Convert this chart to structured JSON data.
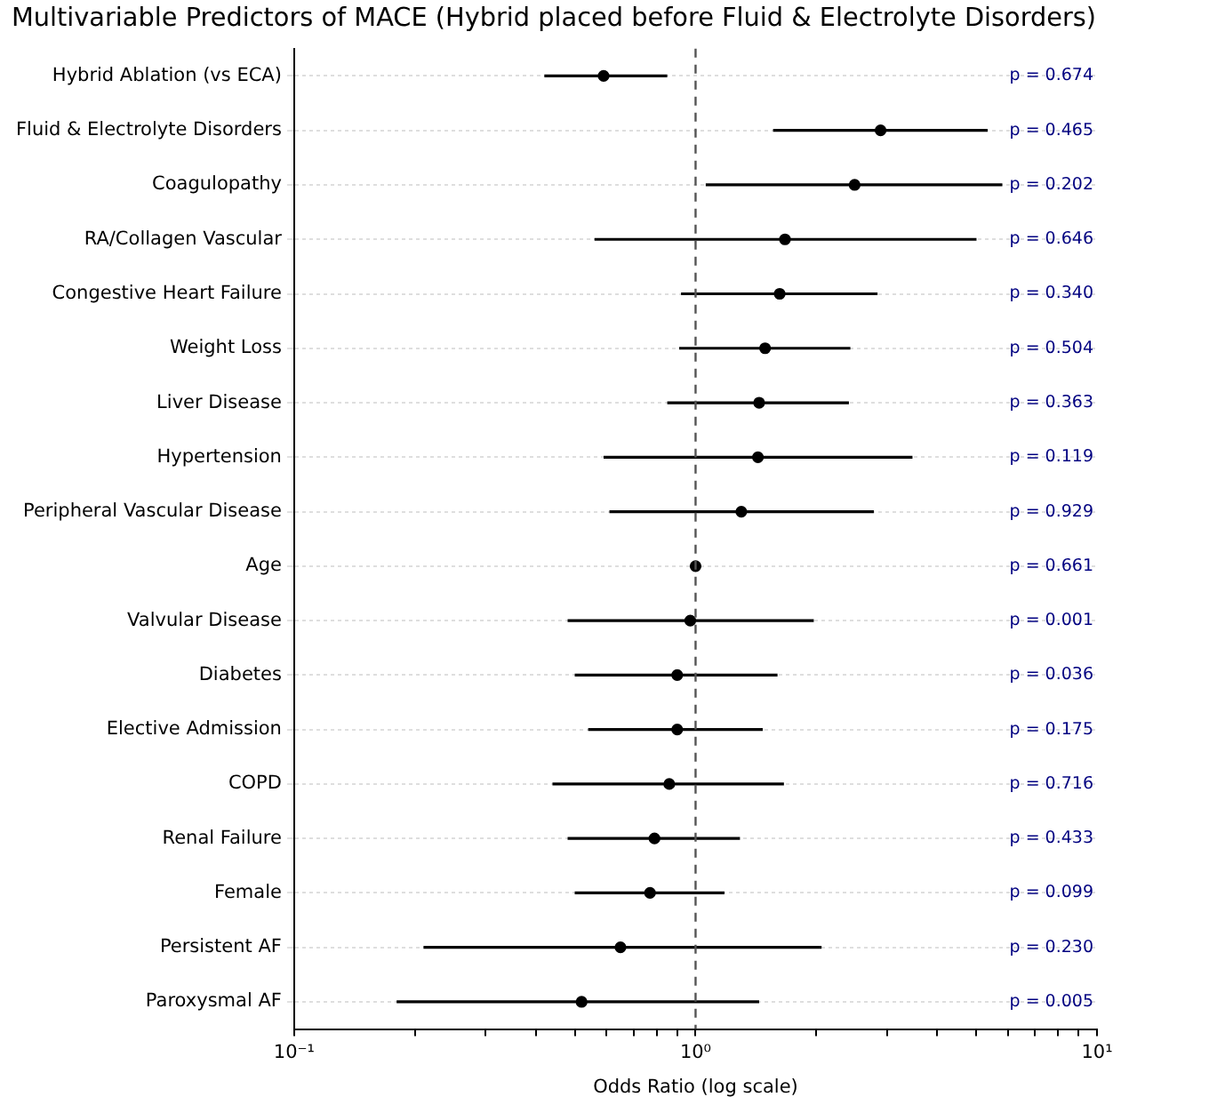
{
  "chart_data": {
    "type": "scatter",
    "orientation": "horizontal",
    "title": "Multivariable Predictors of MACE (Hybrid placed before Fluid & Electrolyte Disorders)",
    "xlabel": "Odds Ratio (log scale)",
    "categories": [
      "Hybrid Ablation (vs ECA)",
      "Fluid & Electrolyte Disorders",
      "Coagulopathy",
      "RA/Collagen Vascular",
      "Congestive Heart Failure",
      "Weight Loss",
      "Liver Disease",
      "Hypertension",
      "Peripheral Vascular Disease",
      "Age",
      "Valvular Disease",
      "Diabetes",
      "Elective Admission",
      "COPD",
      "Renal Failure",
      "Female",
      "Persistent AF",
      "Paroxysmal AF"
    ],
    "series": [
      {
        "color": "#000000",
        "values": [
          0.59,
          2.89,
          2.49,
          1.67,
          1.62,
          1.49,
          1.44,
          1.43,
          1.3,
          1.0,
          0.97,
          0.9,
          0.9,
          0.86,
          0.79,
          0.77,
          0.65,
          0.52
        ],
        "errors": [
          [
            0.42,
            0.85
          ],
          [
            1.56,
            5.34
          ],
          [
            1.06,
            5.81
          ],
          [
            0.56,
            5.01
          ],
          [
            0.92,
            2.84
          ],
          [
            0.91,
            2.43
          ],
          [
            0.85,
            2.41
          ],
          [
            0.59,
            3.47
          ],
          [
            0.61,
            2.78
          ],
          null,
          [
            0.48,
            1.97
          ],
          [
            0.5,
            1.6
          ],
          [
            0.54,
            1.47
          ],
          [
            0.44,
            1.66
          ],
          [
            0.48,
            1.29
          ],
          [
            0.5,
            1.18
          ],
          [
            0.21,
            2.06
          ],
          [
            0.18,
            1.44
          ]
        ]
      }
    ],
    "xlim": [
      0.1,
      10
    ],
    "xticks": [
      {
        "value": 0.1,
        "label": "10⁻¹"
      },
      {
        "value": 0.2,
        "label": null
      },
      {
        "value": 0.3,
        "label": null
      },
      {
        "value": 0.4,
        "label": null
      },
      {
        "value": 0.5,
        "label": null
      },
      {
        "value": 0.6,
        "label": null
      },
      {
        "value": 0.7,
        "label": null
      },
      {
        "value": 0.8,
        "label": null
      },
      {
        "value": 0.9,
        "label": null
      },
      {
        "value": 1,
        "label": "10⁰"
      },
      {
        "value": 2,
        "label": null
      },
      {
        "value": 3,
        "label": null
      },
      {
        "value": 4,
        "label": null
      },
      {
        "value": 5,
        "label": null
      },
      {
        "value": 6,
        "label": null
      },
      {
        "value": 7,
        "label": null
      },
      {
        "value": 8,
        "label": null
      },
      {
        "value": 9,
        "label": null
      },
      {
        "value": 10,
        "label": "10¹"
      }
    ],
    "log": "x",
    "grid": "y",
    "marker": "circle",
    "ref_lines": [
      {
        "axis": "x",
        "value": 1,
        "color": "#555555",
        "line_style": "dashed"
      }
    ],
    "annotations": [
      "p = 0.674",
      "p = 0.465",
      "p = 0.202",
      "p = 0.646",
      "p = 0.340",
      "p = 0.504",
      "p = 0.363",
      "p = 0.119",
      "p = 0.929",
      "p = 0.661",
      "p = 0.001",
      "p = 0.036",
      "p = 0.175",
      "p = 0.716",
      "p = 0.433",
      "p = 0.099",
      "p = 0.230",
      "p = 0.005"
    ]
  }
}
